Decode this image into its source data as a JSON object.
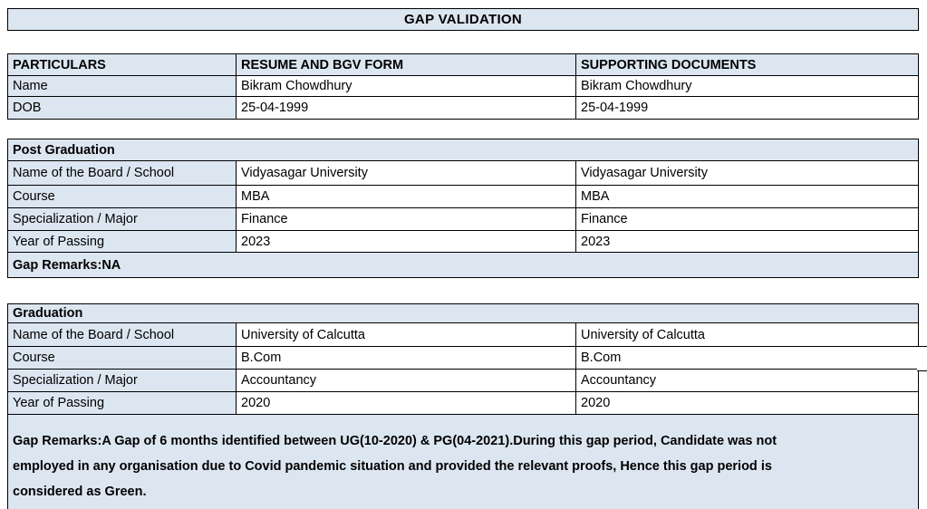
{
  "page_title": "GAP VALIDATION",
  "colors": {
    "section_fill": "#dce6f1",
    "border": "#000000",
    "text": "#000000",
    "page_background": "#ffffff"
  },
  "particulars_table": {
    "headers": {
      "particulars": "PARTICULARS",
      "resume": "RESUME AND BGV FORM",
      "supporting": "SUPPORTING DOCUMENTS"
    },
    "rows": [
      {
        "label": "Name",
        "resume": "Bikram Chowdhury",
        "supporting": "Bikram Chowdhury"
      },
      {
        "label": "DOB",
        "resume": "25-04-1999",
        "supporting": "25-04-1999"
      }
    ]
  },
  "post_graduation": {
    "section_title": "Post Graduation",
    "rows": [
      {
        "label": "Name of the Board / School",
        "resume": "Vidyasagar University",
        "supporting": "Vidyasagar University"
      },
      {
        "label": "Course",
        "resume": "MBA",
        "supporting": "MBA"
      },
      {
        "label": "Specialization / Major",
        "resume": "Finance",
        "supporting": "Finance"
      },
      {
        "label": "Year of Passing",
        "resume": "2023",
        "supporting": "2023"
      }
    ],
    "gap_remarks": "Gap Remarks:NA"
  },
  "graduation": {
    "section_title": "Graduation",
    "rows": [
      {
        "label": "Name of the Board / School",
        "resume": "University of Calcutta",
        "supporting": "University of Calcutta"
      },
      {
        "label": "Course",
        "resume": "B.Com",
        "supporting": "B.Com"
      },
      {
        "label": "Specialization / Major",
        "resume": "Accountancy",
        "supporting": "Accountancy"
      },
      {
        "label": "Year of Passing",
        "resume": "2020",
        "supporting": "2020"
      }
    ],
    "gap_remarks_full": "Gap Remarks:A Gap of 6 months identified between UG(10-2020) & PG(04-2021).During this gap period, Candidate was not employed in any organisation due to Covid pandemic situation and provided the relevant proofs, Hence this gap period is considered as Green.",
    "gap_remarks_lines": [
      "Gap Remarks:A Gap of 6 months identified between UG(10-2020) & PG(04-2021).During this gap period, Candidate was not",
      "employed in any organisation due to Covid pandemic situation and provided the relevant proofs, Hence this gap period is",
      "considered as Green."
    ]
  }
}
